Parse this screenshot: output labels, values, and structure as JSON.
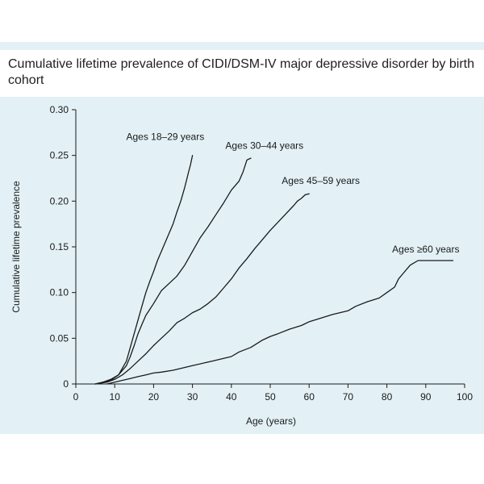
{
  "chart_data": {
    "type": "line",
    "title": "Cumulative lifetime prevalence of CIDI/DSM-IV major depressive disorder by birth cohort",
    "xlabel": "Age (years)",
    "ylabel": "Cumulative lifetime prevalence",
    "xlim": [
      0,
      100
    ],
    "ylim": [
      0,
      0.3
    ],
    "x_ticks": [
      0,
      10,
      20,
      30,
      40,
      50,
      60,
      70,
      80,
      90,
      100
    ],
    "y_ticks": [
      0,
      0.05,
      0.1,
      0.15,
      0.2,
      0.25,
      0.3
    ],
    "x_tick_labels": [
      "0",
      "10",
      "20",
      "30",
      "40",
      "50",
      "60",
      "70",
      "80",
      "90",
      "100"
    ],
    "y_tick_labels": [
      "0",
      "0.05",
      "0.10",
      "0.15",
      "0.20",
      "0.25",
      "0.30"
    ],
    "grid": false,
    "series": [
      {
        "name": "Ages 18–29 years",
        "color": "#1a1a1a",
        "points": [
          [
            5,
            0
          ],
          [
            7,
            0.002
          ],
          [
            9,
            0.004
          ],
          [
            11,
            0.01
          ],
          [
            13,
            0.025
          ],
          [
            14,
            0.04
          ],
          [
            15,
            0.055
          ],
          [
            16,
            0.07
          ],
          [
            17,
            0.085
          ],
          [
            18,
            0.1
          ],
          [
            19,
            0.112
          ],
          [
            20,
            0.123
          ],
          [
            21,
            0.135
          ],
          [
            22,
            0.145
          ],
          [
            23,
            0.155
          ],
          [
            24,
            0.165
          ],
          [
            25,
            0.175
          ],
          [
            26,
            0.188
          ],
          [
            27,
            0.2
          ],
          [
            28,
            0.215
          ],
          [
            29,
            0.232
          ],
          [
            29.5,
            0.24
          ],
          [
            30,
            0.25
          ]
        ]
      },
      {
        "name": "Ages 30–44 years",
        "color": "#1a1a1a",
        "points": [
          [
            5,
            0
          ],
          [
            7,
            0.002
          ],
          [
            9,
            0.005
          ],
          [
            11,
            0.01
          ],
          [
            13,
            0.02
          ],
          [
            14,
            0.03
          ],
          [
            15,
            0.042
          ],
          [
            16,
            0.055
          ],
          [
            17,
            0.065
          ],
          [
            18,
            0.075
          ],
          [
            20,
            0.088
          ],
          [
            22,
            0.102
          ],
          [
            24,
            0.11
          ],
          [
            26,
            0.118
          ],
          [
            28,
            0.13
          ],
          [
            30,
            0.145
          ],
          [
            32,
            0.16
          ],
          [
            34,
            0.172
          ],
          [
            36,
            0.185
          ],
          [
            38,
            0.198
          ],
          [
            40,
            0.212
          ],
          [
            42,
            0.222
          ],
          [
            43,
            0.232
          ],
          [
            44,
            0.245
          ],
          [
            45,
            0.247
          ]
        ]
      },
      {
        "name": "Ages 45–59 years",
        "color": "#1a1a1a",
        "points": [
          [
            5,
            0
          ],
          [
            8,
            0.002
          ],
          [
            10,
            0.005
          ],
          [
            12,
            0.01
          ],
          [
            14,
            0.017
          ],
          [
            16,
            0.025
          ],
          [
            18,
            0.033
          ],
          [
            20,
            0.042
          ],
          [
            22,
            0.05
          ],
          [
            24,
            0.058
          ],
          [
            26,
            0.067
          ],
          [
            28,
            0.072
          ],
          [
            30,
            0.078
          ],
          [
            32,
            0.082
          ],
          [
            34,
            0.088
          ],
          [
            36,
            0.095
          ],
          [
            38,
            0.105
          ],
          [
            40,
            0.115
          ],
          [
            42,
            0.127
          ],
          [
            44,
            0.137
          ],
          [
            46,
            0.148
          ],
          [
            48,
            0.158
          ],
          [
            50,
            0.168
          ],
          [
            52,
            0.177
          ],
          [
            54,
            0.186
          ],
          [
            56,
            0.195
          ],
          [
            57,
            0.2
          ],
          [
            58,
            0.203
          ],
          [
            59,
            0.207
          ],
          [
            60,
            0.208
          ]
        ]
      },
      {
        "name": "Ages ≥60 years",
        "color": "#1a1a1a",
        "points": [
          [
            8,
            0
          ],
          [
            10,
            0.002
          ],
          [
            12,
            0.004
          ],
          [
            14,
            0.006
          ],
          [
            16,
            0.008
          ],
          [
            18,
            0.01
          ],
          [
            20,
            0.012
          ],
          [
            22,
            0.013
          ],
          [
            25,
            0.015
          ],
          [
            30,
            0.02
          ],
          [
            35,
            0.025
          ],
          [
            40,
            0.03
          ],
          [
            42,
            0.035
          ],
          [
            45,
            0.04
          ],
          [
            48,
            0.048
          ],
          [
            50,
            0.052
          ],
          [
            52,
            0.055
          ],
          [
            55,
            0.06
          ],
          [
            58,
            0.064
          ],
          [
            60,
            0.068
          ],
          [
            63,
            0.072
          ],
          [
            66,
            0.076
          ],
          [
            70,
            0.08
          ],
          [
            72,
            0.085
          ],
          [
            75,
            0.09
          ],
          [
            78,
            0.094
          ],
          [
            80,
            0.1
          ],
          [
            82,
            0.106
          ],
          [
            83,
            0.115
          ],
          [
            84,
            0.12
          ],
          [
            86,
            0.13
          ],
          [
            88,
            0.135
          ],
          [
            90,
            0.135
          ],
          [
            97,
            0.135
          ]
        ]
      }
    ],
    "annotations": [
      {
        "series": 0,
        "text": "Ages 18–29 years",
        "x": 23,
        "y": 0.267
      },
      {
        "series": 1,
        "text": "Ages 30–44 years",
        "x": 48.5,
        "y": 0.257
      },
      {
        "series": 2,
        "text": "Ages 45–59 years",
        "x": 63,
        "y": 0.219
      },
      {
        "series": 3,
        "text": "Ages ≥60 years",
        "x": 90,
        "y": 0.144
      }
    ]
  }
}
